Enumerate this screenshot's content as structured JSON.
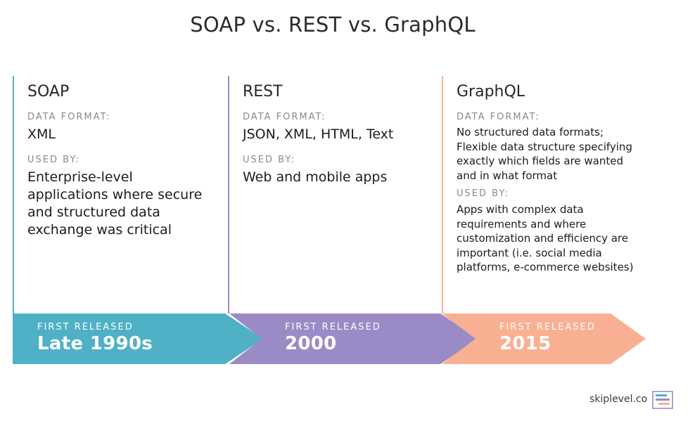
{
  "title": "SOAP vs. REST vs. GraphQL",
  "columns": [
    {
      "name": "SOAP",
      "data_format_label": "DATA FORMAT:",
      "data_format": "XML",
      "used_by_label": "USED BY:",
      "used_by": "Enterprise-level applications where secure and structured data exchange was critical",
      "first_released_label": "FIRST RELEASED",
      "first_released": "Late 1990s",
      "color": "#4fb0c6"
    },
    {
      "name": "REST",
      "data_format_label": "DATA FORMAT:",
      "data_format": "JSON, XML, HTML, Text",
      "used_by_label": "USED BY:",
      "used_by": "Web and mobile apps",
      "first_released_label": "FIRST RELEASED",
      "first_released": "2000",
      "color": "#9a8bc7"
    },
    {
      "name": "GraphQL",
      "data_format_label": "DATA FORMAT:",
      "data_format": "No structured data formats; Flexible data structure specifying exactly which fields are wanted and in what format",
      "used_by_label": "USED BY:",
      "used_by": "Apps with complex data requirements and where customization and efficiency are important (i.e. social media platforms, e-commerce websites)",
      "first_released_label": "FIRST RELEASED",
      "first_released": "2015",
      "color": "#f9b092"
    }
  ],
  "brand": {
    "text": "skiplevel.co",
    "logo_icon": "skiplevel-logo-icon"
  }
}
